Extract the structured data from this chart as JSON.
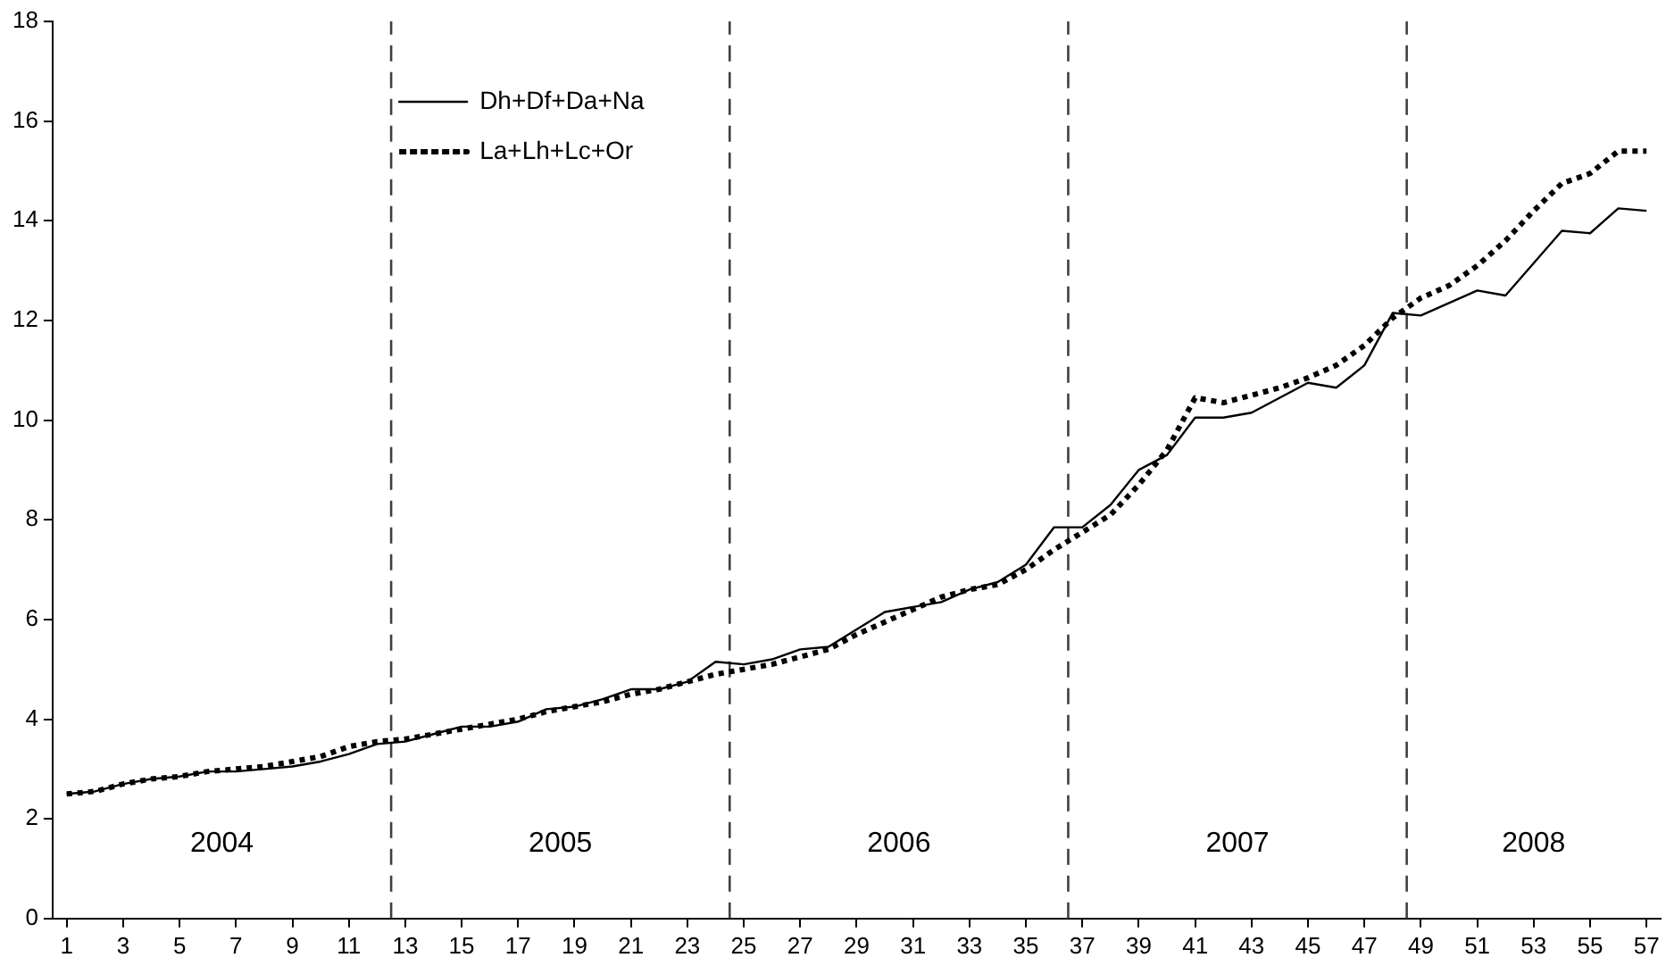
{
  "chart_data": {
    "type": "line",
    "x": [
      1,
      2,
      3,
      4,
      5,
      6,
      7,
      8,
      9,
      10,
      11,
      12,
      13,
      14,
      15,
      16,
      17,
      18,
      19,
      20,
      21,
      22,
      23,
      24,
      25,
      26,
      27,
      28,
      29,
      30,
      31,
      32,
      33,
      34,
      35,
      36,
      37,
      38,
      39,
      40,
      41,
      42,
      43,
      44,
      45,
      46,
      47,
      48,
      49,
      50,
      51,
      52,
      53,
      54,
      55,
      56,
      57
    ],
    "series": [
      {
        "name": "Dh+Df+Da+Na",
        "color": "#000000",
        "line_style": "solid",
        "values": [
          2.5,
          2.55,
          2.7,
          2.8,
          2.85,
          2.95,
          2.95,
          3.0,
          3.05,
          3.15,
          3.3,
          3.5,
          3.55,
          3.7,
          3.85,
          3.85,
          3.95,
          4.2,
          4.25,
          4.4,
          4.6,
          4.6,
          4.75,
          5.15,
          5.1,
          5.2,
          5.4,
          5.45,
          5.8,
          6.15,
          6.25,
          6.35,
          6.6,
          6.75,
          7.1,
          7.85,
          7.85,
          8.3,
          9.0,
          9.3,
          10.05,
          10.05,
          10.15,
          10.45,
          10.75,
          10.65,
          11.1,
          12.15,
          12.1,
          12.35,
          12.6,
          12.5,
          13.15,
          13.8,
          13.75,
          14.25,
          14.2
        ]
      },
      {
        "name": "La+Lh+Lc+Or",
        "color": "#000000",
        "line_style": "dotted",
        "values": [
          2.5,
          2.55,
          2.7,
          2.8,
          2.85,
          2.95,
          3.0,
          3.05,
          3.15,
          3.25,
          3.45,
          3.55,
          3.6,
          3.7,
          3.8,
          3.9,
          4.0,
          4.15,
          4.25,
          4.35,
          4.5,
          4.6,
          4.75,
          4.9,
          5.0,
          5.1,
          5.25,
          5.4,
          5.7,
          5.95,
          6.2,
          6.45,
          6.6,
          6.7,
          7.0,
          7.4,
          7.75,
          8.1,
          8.7,
          9.4,
          10.45,
          10.35,
          10.5,
          10.65,
          10.85,
          11.1,
          11.5,
          12.05,
          12.45,
          12.7,
          13.1,
          13.6,
          14.2,
          14.75,
          14.95,
          15.4,
          15.4
        ]
      }
    ],
    "xlim": [
      0.5,
      57.5
    ],
    "xticks": [
      1,
      3,
      5,
      7,
      9,
      11,
      13,
      15,
      17,
      19,
      21,
      23,
      25,
      27,
      29,
      31,
      33,
      35,
      37,
      39,
      41,
      43,
      45,
      47,
      49,
      51,
      53,
      55,
      57
    ],
    "ylim": [
      0,
      18
    ],
    "yticks": [
      0,
      2,
      4,
      6,
      8,
      10,
      12,
      14,
      16,
      18
    ],
    "grid": false,
    "legend": "top left",
    "marker": "none",
    "ref_lines": [
      {
        "axis": "x",
        "value": 12.5,
        "color": "#404040",
        "line_style": "dashed"
      },
      {
        "axis": "x",
        "value": 24.5,
        "color": "#404040",
        "line_style": "dashed"
      },
      {
        "axis": "x",
        "value": 36.5,
        "color": "#404040",
        "line_style": "dashed"
      },
      {
        "axis": "x",
        "value": 48.5,
        "color": "#404040",
        "line_style": "dashed"
      }
    ],
    "annotations": [
      "2004",
      "2005",
      "2006",
      "2007",
      "2008"
    ]
  }
}
